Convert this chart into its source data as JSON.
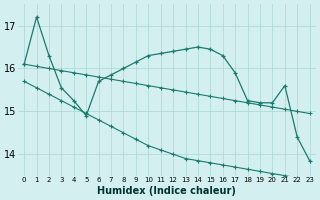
{
  "xlabel": "Humidex (Indice chaleur)",
  "bg_color": "#d4efef",
  "line_color": "#1a7a6e",
  "grid_color": "#b0dada",
  "x_ticks": [
    0,
    1,
    2,
    3,
    4,
    5,
    6,
    7,
    8,
    9,
    10,
    11,
    12,
    13,
    14,
    15,
    16,
    17,
    18,
    19,
    20,
    21,
    22,
    23
  ],
  "ylim": [
    13.5,
    17.5
  ],
  "xlim": [
    -0.5,
    23.5
  ],
  "yticks": [
    14,
    15,
    16,
    17
  ],
  "series1_x": [
    0,
    1,
    2,
    3,
    4,
    5,
    6,
    7,
    8,
    9,
    10,
    11,
    12,
    13,
    14,
    15,
    16,
    17,
    18,
    19,
    20,
    21,
    22,
    23
  ],
  "series1_y": [
    16.1,
    17.2,
    16.3,
    15.55,
    15.25,
    14.9,
    15.7,
    15.85,
    16.0,
    16.15,
    16.3,
    16.35,
    16.4,
    16.45,
    16.5,
    16.45,
    16.3,
    15.9,
    15.25,
    15.2,
    15.2,
    15.6,
    14.4,
    13.85
  ],
  "series2_x": [
    0,
    1,
    2,
    3,
    4,
    5,
    6,
    7,
    8,
    9,
    10,
    11,
    12,
    13,
    14,
    15,
    16,
    17,
    18,
    19,
    20,
    21,
    22,
    23
  ],
  "series2_y": [
    16.1,
    16.05,
    16.0,
    15.95,
    15.9,
    15.85,
    15.8,
    15.75,
    15.7,
    15.65,
    15.6,
    15.55,
    15.5,
    15.45,
    15.4,
    15.35,
    15.3,
    15.25,
    15.2,
    15.15,
    15.1,
    15.05,
    15.0,
    14.95
  ],
  "series3_x": [
    0,
    1,
    2,
    3,
    4,
    5,
    6,
    7,
    8,
    9,
    10,
    11,
    12,
    13,
    14,
    15,
    16,
    17,
    18,
    19,
    20,
    21,
    22,
    23
  ],
  "series3_y": [
    15.7,
    15.55,
    15.4,
    15.25,
    15.1,
    14.95,
    14.8,
    14.65,
    14.5,
    14.35,
    14.2,
    14.1,
    14.0,
    13.9,
    13.85,
    13.8,
    13.75,
    13.7,
    13.65,
    13.6,
    13.55,
    13.5,
    13.45,
    13.4
  ]
}
